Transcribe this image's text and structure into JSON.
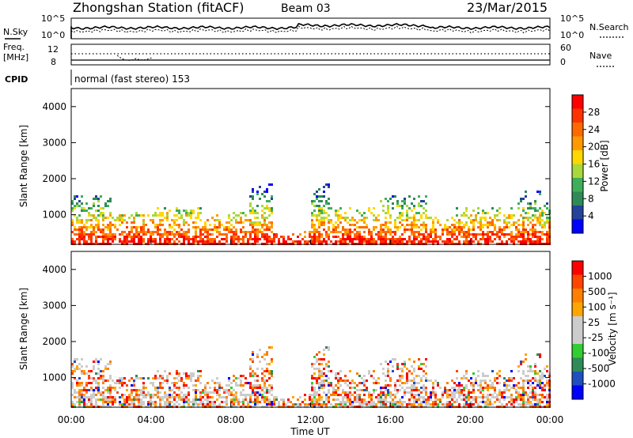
{
  "header": {
    "station": "Zhongshan Station (fitACF)",
    "beam": "Beam 03",
    "date": "23/Mar/2015"
  },
  "noise_panel": {
    "left_label": "N.Sky",
    "right_label": "N.Search",
    "y_ticks_left": [
      "10^5",
      "10^0"
    ],
    "y_ticks_right": [
      "10^5",
      "10^0"
    ]
  },
  "freq_panel": {
    "left_label_line1": "Freq.",
    "left_label_line2": "[MHz]",
    "right_label": "Nave",
    "y_ticks_left": [
      "12",
      "8"
    ],
    "y_ticks_right": [
      "60",
      "0"
    ]
  },
  "cpid": {
    "label": "CPID",
    "text": "normal (fast stereo) 153"
  },
  "colors": {
    "power_scale": [
      "#0000ff",
      "#23429a",
      "#2e8b57",
      "#3fae5a",
      "#a8d83c",
      "#ffd800",
      "#ff9900",
      "#ff6a00",
      "#ff3300",
      "#ff0000"
    ],
    "velocity_scale": [
      "#0000ff",
      "#2050c0",
      "#2e8b57",
      "#32cd32",
      "#cccccc",
      "#cccccc",
      "#ffa500",
      "#ff7f00",
      "#ff4500",
      "#ff0000"
    ]
  },
  "chart_data": [
    {
      "type": "heatmap",
      "title": "Power",
      "xlabel": "Time UT",
      "ylabel": "Slant Range [km]",
      "x_ticks": [
        "00:00",
        "04:00",
        "08:00",
        "12:00",
        "16:00",
        "20:00",
        "00:00"
      ],
      "y_ticks": [
        "1000",
        "2000",
        "3000",
        "4000"
      ],
      "ylim": [
        180,
        4500
      ],
      "colorbar": {
        "label": "Power [dB]",
        "ticks": [
          "4",
          "8",
          "12",
          "16",
          "20",
          "24",
          "28"
        ],
        "range": [
          0,
          30
        ]
      }
    },
    {
      "type": "heatmap",
      "title": "Velocity",
      "xlabel": "Time UT",
      "ylabel": "Slant Range [km]",
      "x_ticks": [
        "00:00",
        "04:00",
        "08:00",
        "12:00",
        "16:00",
        "20:00",
        "00:00"
      ],
      "y_ticks": [
        "1000",
        "2000",
        "3000",
        "4000"
      ],
      "ylim": [
        180,
        4500
      ],
      "colorbar": {
        "label": "Velocity [m s⁻¹]",
        "ticks": [
          "1000",
          "500",
          "100",
          "25",
          "-25",
          "-100",
          "-500",
          "-1000"
        ]
      }
    }
  ]
}
